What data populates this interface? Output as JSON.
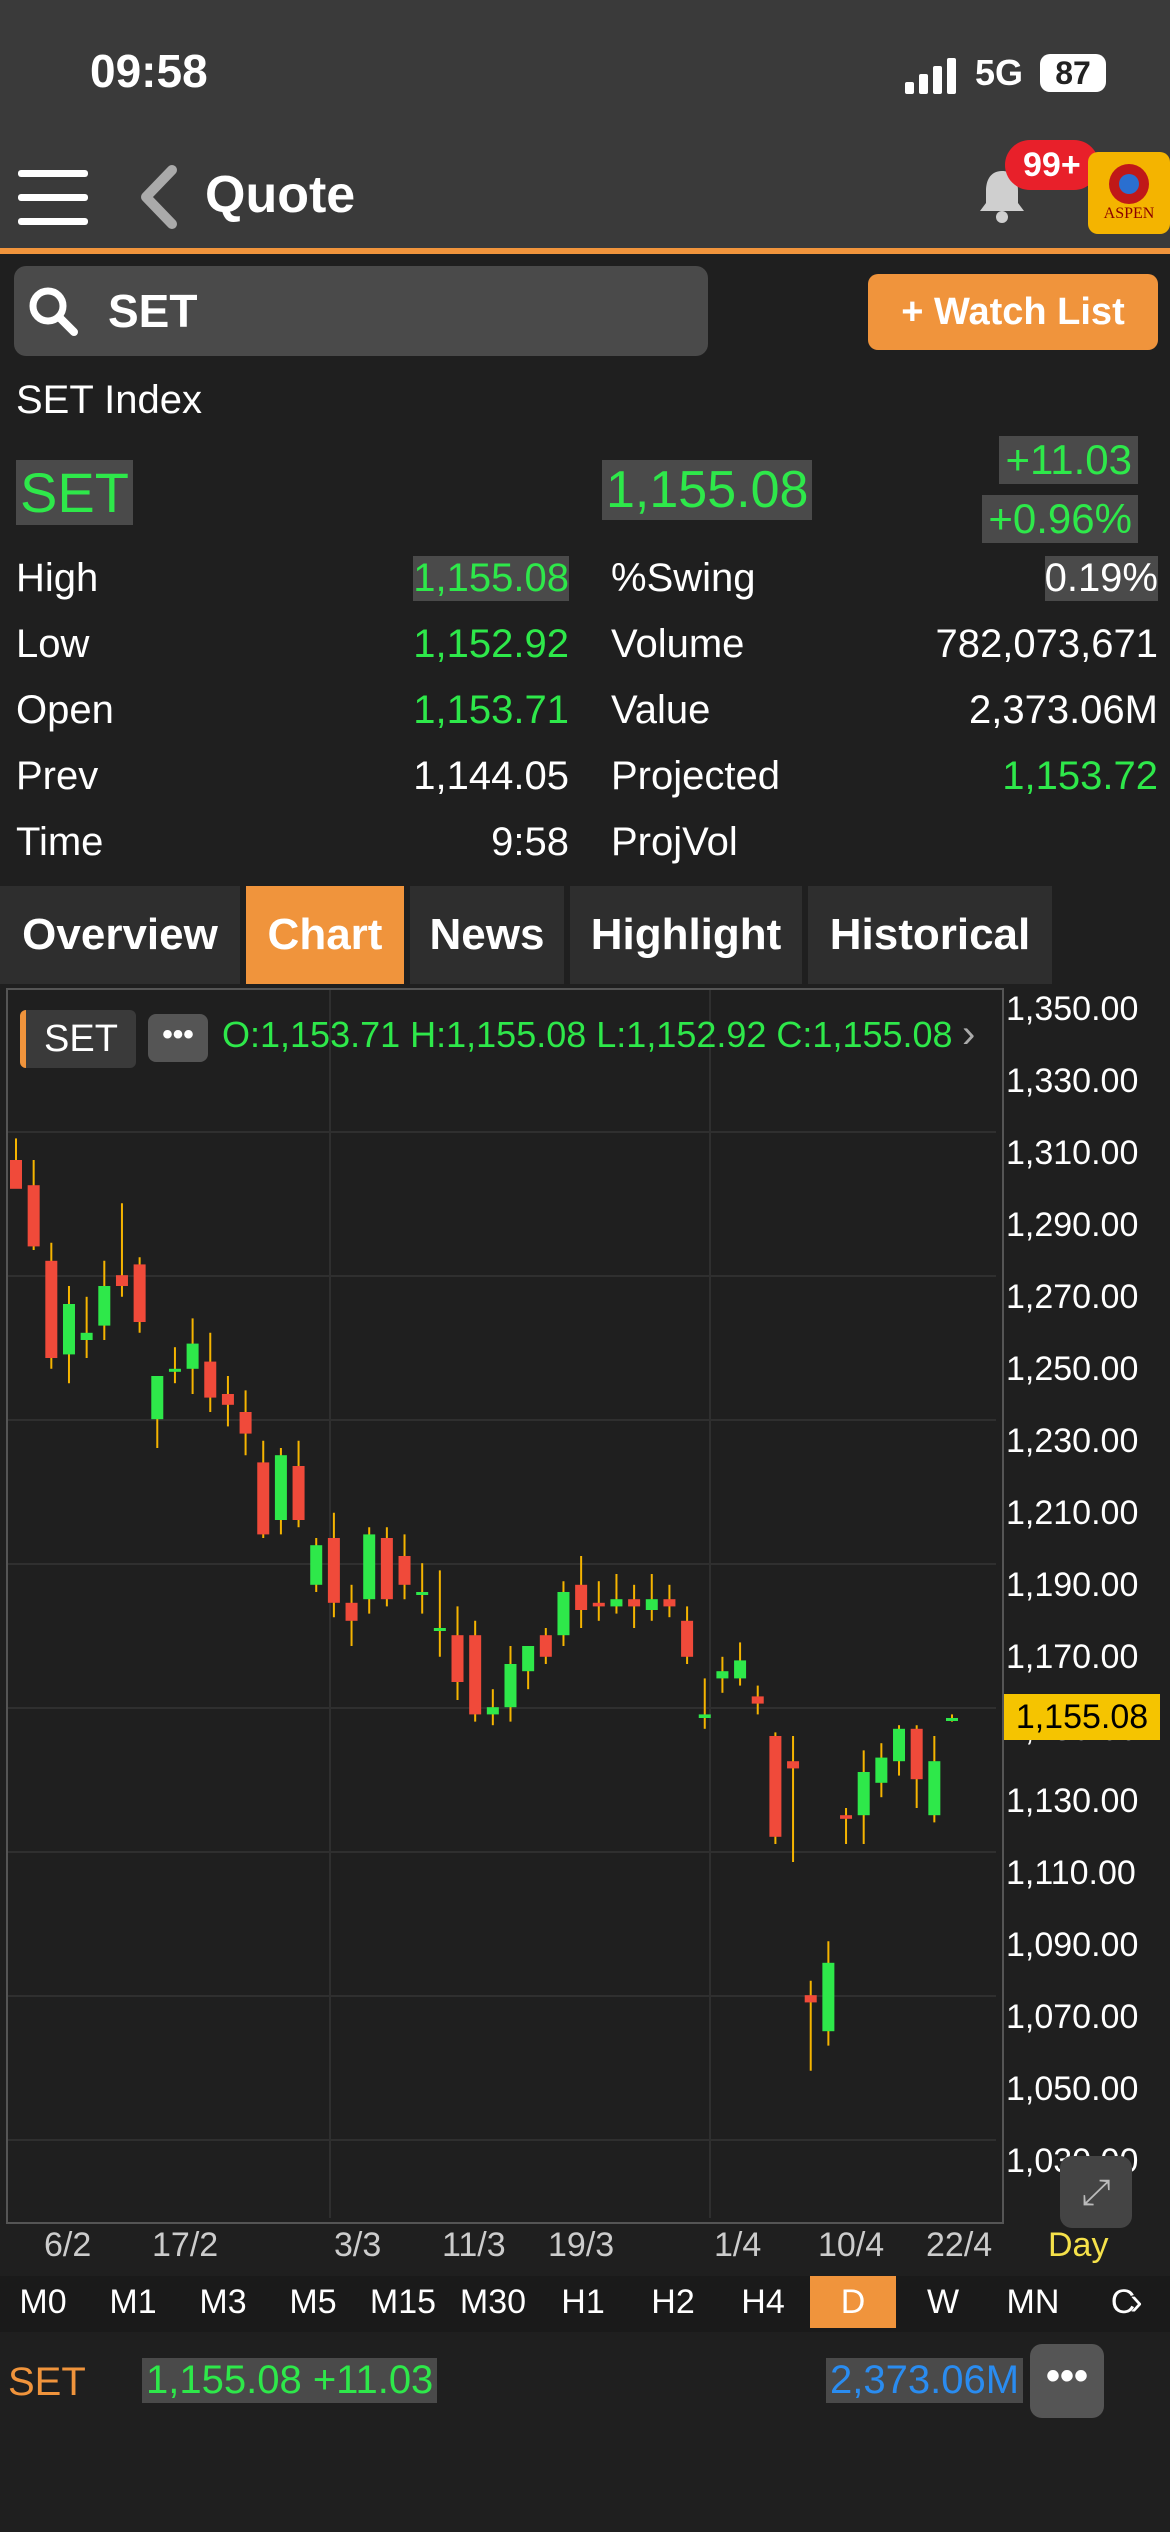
{
  "status": {
    "time": "09:58",
    "network": "5G",
    "battery": "87"
  },
  "header": {
    "title": "Quote",
    "notif_badge": "99+",
    "logo_text": "ASPEN"
  },
  "search": {
    "value": "SET",
    "watch_label": "+ Watch List"
  },
  "quote": {
    "name": "SET Index",
    "symbol": "SET",
    "last": "1,155.08",
    "change": "+11.03",
    "pct_change": "+0.96%",
    "rows": [
      {
        "l1": "High",
        "v1": "1,155.08",
        "l2": "%Swing",
        "v2": "0.19%"
      },
      {
        "l1": "Low",
        "v1": "1,152.92",
        "l2": "Volume",
        "v2": "782,073,671"
      },
      {
        "l1": "Open",
        "v1": "1,153.71",
        "l2": "Value",
        "v2": "2,373.06M"
      },
      {
        "l1": "Prev",
        "v1": "1,144.05",
        "l2": "Projected",
        "v2": "1,153.72"
      },
      {
        "l1": "Time",
        "v1": "9:58",
        "l2": "ProjVol",
        "v2": ""
      }
    ]
  },
  "tabs": [
    "Overview",
    "Chart",
    "News",
    "Highlight",
    "Historical"
  ],
  "active_tab": "Chart",
  "chart_legend": {
    "symbol": "SET",
    "more": "•••",
    "ohlc": "O:1,153.71  H:1,155.08  L:1,152.92  C:1,155.08"
  },
  "chart_data": {
    "type": "candlestick",
    "ylim": [
      1030,
      1350
    ],
    "yticks": [
      "1,350.00",
      "1,330.00",
      "1,310.00",
      "1,290.00",
      "1,270.00",
      "1,250.00",
      "1,230.00",
      "1,210.00",
      "1,190.00",
      "1,170.00",
      "1,150.00",
      "1,130.00",
      "1,110.00",
      "1,090.00",
      "1,070.00",
      "1,050.00",
      "1,030.00"
    ],
    "xticks": [
      "6/2",
      "17/2",
      "3/3",
      "11/3",
      "19/3",
      "1/4",
      "10/4",
      "22/4"
    ],
    "period": "Day",
    "current_price": "1,155.08",
    "candles": [
      [
        1310,
        1316,
        1305,
        1302
      ],
      [
        1303,
        1310,
        1285,
        1286
      ],
      [
        1282,
        1287,
        1252,
        1255
      ],
      [
        1256,
        1275,
        1248,
        1270
      ],
      [
        1260,
        1272,
        1255,
        1262
      ],
      [
        1264,
        1282,
        1260,
        1275
      ],
      [
        1278,
        1298,
        1272,
        1275
      ],
      [
        1281,
        1283,
        1262,
        1265
      ],
      [
        1238,
        1250,
        1230,
        1250
      ],
      [
        1252,
        1258,
        1248,
        1252
      ],
      [
        1252,
        1266,
        1245,
        1259
      ],
      [
        1254,
        1262,
        1240,
        1244
      ],
      [
        1245,
        1250,
        1236,
        1242
      ],
      [
        1240,
        1246,
        1228,
        1234
      ],
      [
        1226,
        1232,
        1205,
        1206
      ],
      [
        1210,
        1230,
        1206,
        1228
      ],
      [
        1225,
        1232,
        1208,
        1210
      ],
      [
        1192,
        1205,
        1190,
        1203
      ],
      [
        1205,
        1212,
        1183,
        1187
      ],
      [
        1187,
        1192,
        1175,
        1182
      ],
      [
        1188,
        1208,
        1184,
        1206
      ],
      [
        1205,
        1208,
        1186,
        1188
      ],
      [
        1200,
        1206,
        1188,
        1192
      ],
      [
        1190,
        1198,
        1184,
        1190
      ],
      [
        1180,
        1196,
        1172,
        1180
      ],
      [
        1178,
        1186,
        1160,
        1165
      ],
      [
        1178,
        1182,
        1154,
        1156
      ],
      [
        1156,
        1163,
        1153,
        1158
      ],
      [
        1158,
        1175,
        1154,
        1170
      ],
      [
        1168,
        1175,
        1163,
        1175
      ],
      [
        1178,
        1180,
        1170,
        1172
      ],
      [
        1178,
        1193,
        1175,
        1190
      ],
      [
        1192,
        1200,
        1180,
        1185
      ],
      [
        1187,
        1193,
        1182,
        1186
      ],
      [
        1186,
        1195,
        1184,
        1188
      ],
      [
        1188,
        1192,
        1180,
        1186
      ],
      [
        1185,
        1195,
        1182,
        1188
      ],
      [
        1188,
        1192,
        1183,
        1186
      ],
      [
        1182,
        1186,
        1170,
        1172
      ],
      [
        1155,
        1166,
        1152,
        1156
      ],
      [
        1166,
        1172,
        1162,
        1168
      ],
      [
        1166,
        1176,
        1164,
        1171
      ],
      [
        1161,
        1164,
        1156,
        1159
      ],
      [
        1150,
        1151,
        1120,
        1122
      ],
      [
        1143,
        1150,
        1115,
        1141
      ],
      [
        1078,
        1082,
        1057,
        1076
      ],
      [
        1068,
        1093,
        1064,
        1087
      ],
      [
        1128,
        1130,
        1120,
        1127
      ],
      [
        1128,
        1146,
        1120,
        1140
      ],
      [
        1137,
        1148,
        1133,
        1144
      ],
      [
        1143,
        1153,
        1139,
        1152
      ],
      [
        1152,
        1153,
        1130,
        1138
      ],
      [
        1128,
        1150,
        1126,
        1143
      ],
      [
        1155,
        1156,
        1154,
        1155
      ]
    ]
  },
  "intervals": [
    "M0",
    "M1",
    "M3",
    "M5",
    "M15",
    "M30",
    "H1",
    "H2",
    "H4",
    "D",
    "W",
    "MN",
    "C"
  ],
  "active_interval": "D",
  "bottom": {
    "symbol": "SET",
    "price": "1,155.08 +11.03",
    "value": "2,373.06M",
    "more": "•••"
  }
}
